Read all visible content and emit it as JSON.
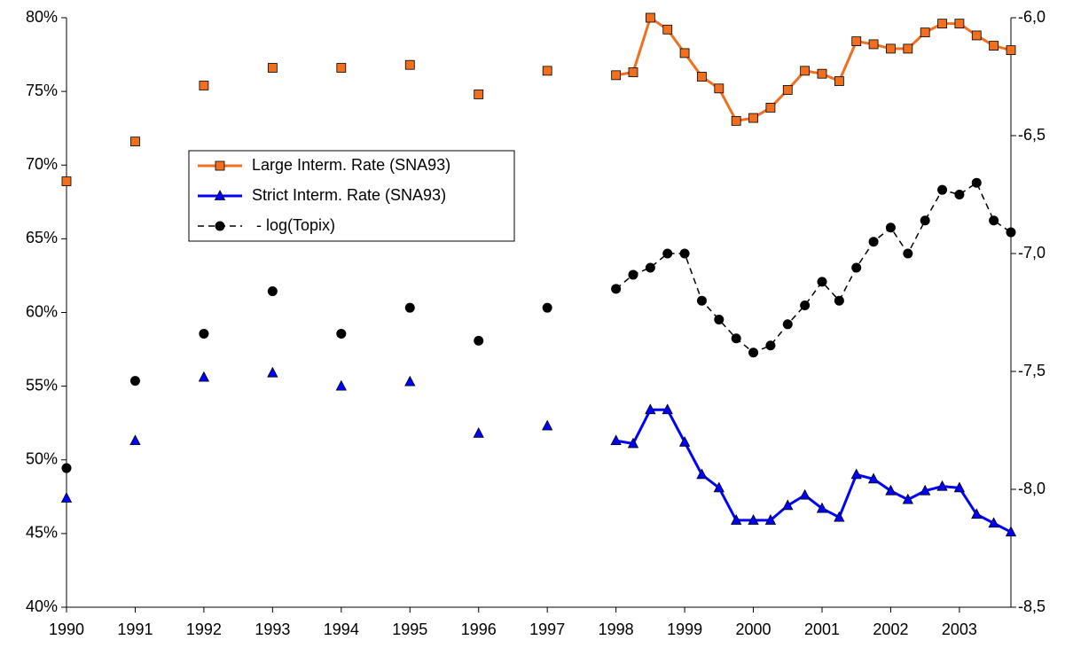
{
  "chart_data": {
    "type": "line",
    "x": [
      1990,
      1991,
      1992,
      1993,
      1994,
      1995,
      1996,
      1997,
      1998,
      1998.25,
      1998.5,
      1998.75,
      1999,
      1999.25,
      1999.5,
      1999.75,
      2000,
      2000.25,
      2000.5,
      2000.75,
      2001,
      2001.25,
      2001.5,
      2001.75,
      2002,
      2002.25,
      2002.5,
      2002.75,
      2003,
      2003.25,
      2003.5,
      2003.75
    ],
    "series": [
      {
        "name": "Large Interm. Rate (SNA93)",
        "color": "#f07020",
        "marker": "square",
        "line_style": "solid",
        "values": [
          68.9,
          71.6,
          75.4,
          76.6,
          76.6,
          76.8,
          74.8,
          76.4,
          76.1,
          76.3,
          80.0,
          79.2,
          77.6,
          76.0,
          75.2,
          73.0,
          73.2,
          73.9,
          75.1,
          76.4,
          76.2,
          75.7,
          78.4,
          78.2,
          77.9,
          77.9,
          79.0,
          79.6,
          79.6,
          78.8,
          78.1,
          77.8
        ]
      },
      {
        "name": "Strict Interm. Rate (SNA93)",
        "color": "#0000ff",
        "marker": "triangle",
        "line_style": "solid",
        "values": [
          47.4,
          51.3,
          55.6,
          55.9,
          55.0,
          55.3,
          51.8,
          52.3,
          51.3,
          51.1,
          53.4,
          53.4,
          51.2,
          49.0,
          48.1,
          45.9,
          45.9,
          45.9,
          46.9,
          47.6,
          46.7,
          46.1,
          49.0,
          48.7,
          47.9,
          47.3,
          47.9,
          48.2,
          48.1,
          46.3,
          45.7,
          45.1
        ]
      },
      {
        "name": " - log(Topix)",
        "color": "#000000",
        "marker": "circle",
        "line_style": "dashed",
        "axis": "y2",
        "values": [
          -7.91,
          -7.54,
          -7.34,
          -7.16,
          -7.34,
          -7.23,
          -7.37,
          -7.23,
          -7.15,
          -7.09,
          -7.06,
          -7.0,
          -7.0,
          -7.2,
          -7.28,
          -7.36,
          -7.42,
          -7.39,
          -7.3,
          -7.22,
          -7.12,
          -7.2,
          -7.06,
          -6.95,
          -6.89,
          -7.0,
          -6.86,
          -6.73,
          -6.75,
          -6.7,
          -6.86,
          -6.91
        ]
      }
    ],
    "xlim": [
      1990,
      2003.75
    ],
    "xticks": [
      1990,
      1991,
      1992,
      1993,
      1994,
      1995,
      1996,
      1997,
      1998,
      1999,
      2000,
      2001,
      2002,
      2003
    ],
    "ylim": [
      40,
      80
    ],
    "yticks": [
      {
        "value": 40,
        "label": "40%"
      },
      {
        "value": 45,
        "label": "45%"
      },
      {
        "value": 50,
        "label": "50%"
      },
      {
        "value": 55,
        "label": "55%"
      },
      {
        "value": 60,
        "label": "60%"
      },
      {
        "value": 65,
        "label": "65%"
      },
      {
        "value": 70,
        "label": "70%"
      },
      {
        "value": 75,
        "label": "75%"
      },
      {
        "value": 80,
        "label": "80%"
      }
    ],
    "y2lim": [
      -8.5,
      -6.0
    ],
    "y2ticks": [
      {
        "value": -8.5,
        "label": "-8,5"
      },
      {
        "value": -8.0,
        "label": "-8,0"
      },
      {
        "value": -7.5,
        "label": "-7,5"
      },
      {
        "value": -7.0,
        "label": "-7,0"
      },
      {
        "value": -6.5,
        "label": "-6,5"
      },
      {
        "value": -6.0,
        "label": "-6,0"
      }
    ],
    "grid": false,
    "legend": "upper left"
  }
}
